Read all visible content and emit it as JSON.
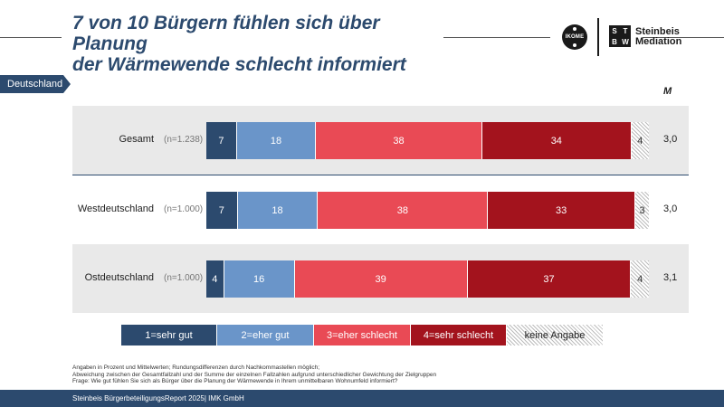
{
  "title_line1": "7 von 10 Bürgern fühlen sich über Planung",
  "title_line2": "der Wärmewende schlecht informiert",
  "logos": {
    "ikome": "IKOME",
    "sw_letters": [
      "S",
      "T",
      "B",
      "W"
    ],
    "brand_line1": "Steinbeis",
    "brand_line2": "Mediation"
  },
  "region_tag": "Deutschland",
  "m_header": "M",
  "colors": {
    "sehr_gut": "#2c4a6e",
    "eher_gut": "#6a95c9",
    "eher_schlecht": "#e94a55",
    "sehr_schlecht": "#a3131d",
    "keine_angabe": "hatched"
  },
  "chart_data": {
    "type": "bar",
    "orientation": "horizontal-stacked-100",
    "categories": [
      "Gesamt",
      "Westdeutschland",
      "Ostdeutschland"
    ],
    "sample_sizes": [
      "(n=1.238)",
      "(n=1.000)",
      "(n=1.000)"
    ],
    "means": [
      "3,0",
      "3,0",
      "3,1"
    ],
    "series": [
      {
        "name": "1=sehr gut",
        "values": [
          7,
          7,
          4
        ]
      },
      {
        "name": "2=eher gut",
        "values": [
          18,
          18,
          16
        ]
      },
      {
        "name": "3=eher schlecht",
        "values": [
          38,
          38,
          39
        ]
      },
      {
        "name": "4=sehr schlecht",
        "values": [
          34,
          33,
          37
        ]
      },
      {
        "name": "keine Angabe",
        "values": [
          4,
          3,
          4
        ]
      }
    ],
    "xlim": [
      0,
      100
    ],
    "legend_position": "bottom"
  },
  "notes": [
    "Angaben in Prozent und Mittelwerten; Rundungsdifferenzen durch Nachkommastellen möglich;",
    "Abweichung zwischen der Gesamtfallzahl und der Summe der einzelnen Fallzahlen aufgrund unterschiedlicher Gewichtung der Zielgruppen",
    "Frage: Wie gut fühlen Sie sich als Bürger über die Planung der Wärmewende in Ihrem unmittelbaren Wohnumfeld informiert?"
  ],
  "footer": "Steinbeis BürgerbeteiligungsReport 2025| IMK GmbH"
}
